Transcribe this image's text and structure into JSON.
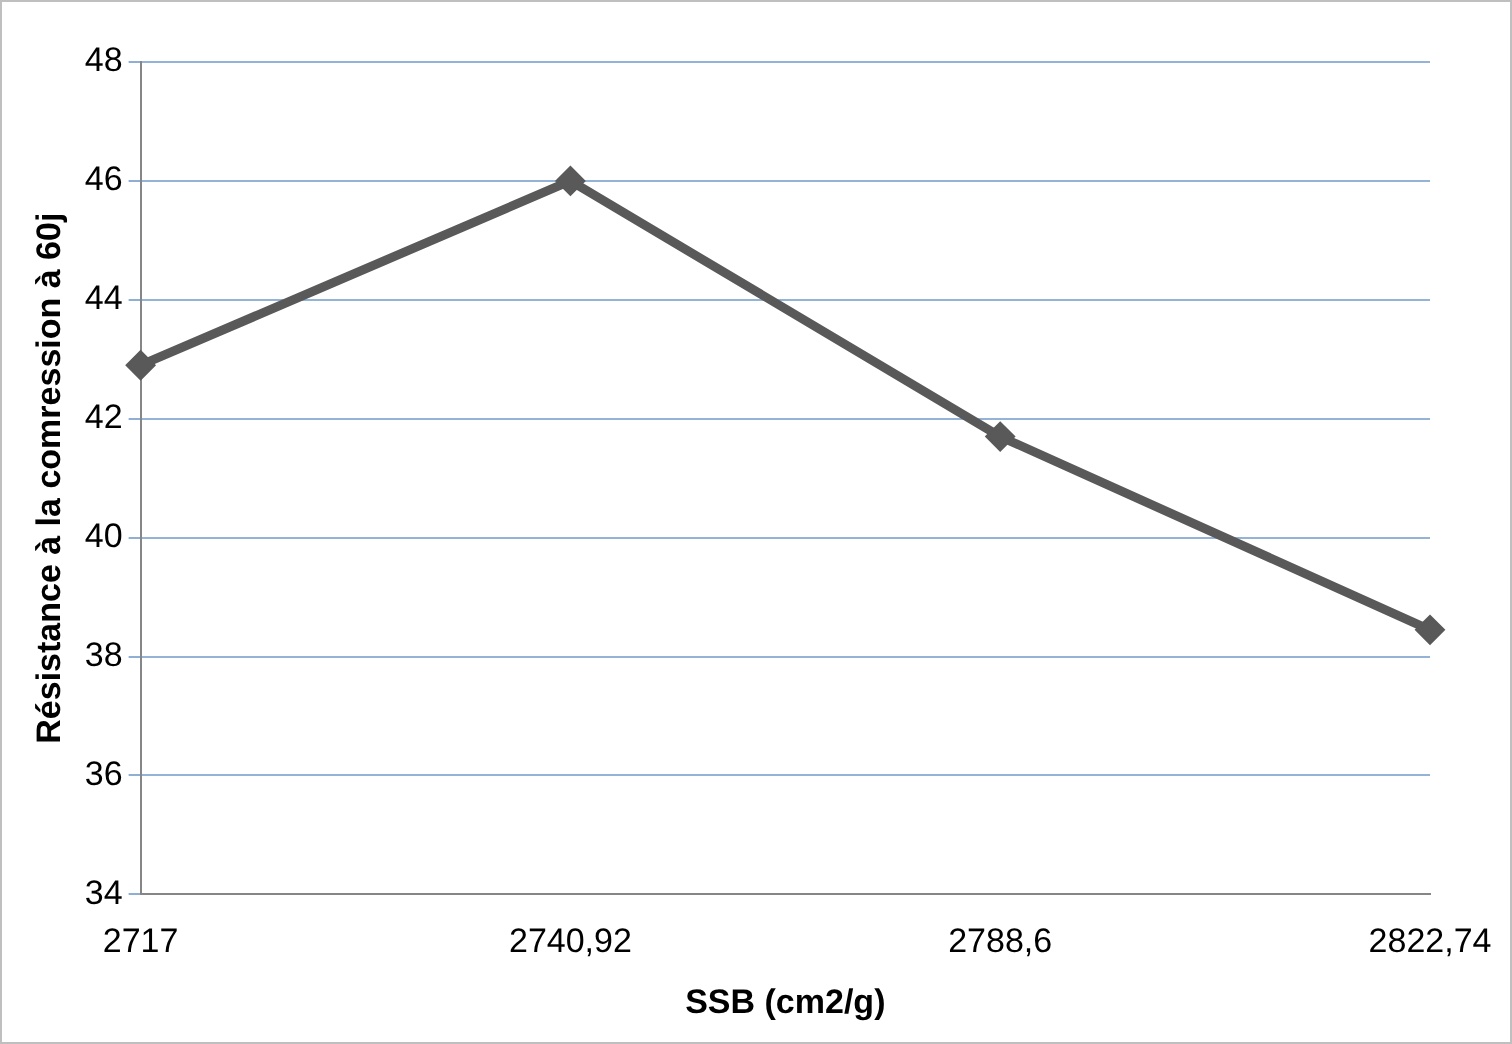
{
  "chart_data": {
    "type": "line",
    "xlabel": "SSB (cm2/g)",
    "ylabel": "Résistance à la comression à 60j",
    "categories": [
      "2717",
      "2740,92",
      "2788,6",
      "2822,74"
    ],
    "series": [
      {
        "color": "#595959",
        "values": [
          42.9,
          46.0,
          41.7,
          38.45
        ]
      }
    ],
    "ylim": [
      34,
      48
    ],
    "yticks": [
      34,
      36,
      38,
      40,
      42,
      44,
      46,
      48
    ],
    "grid": "y",
    "legend": false,
    "marker": "diamond",
    "line_style": "solid"
  }
}
